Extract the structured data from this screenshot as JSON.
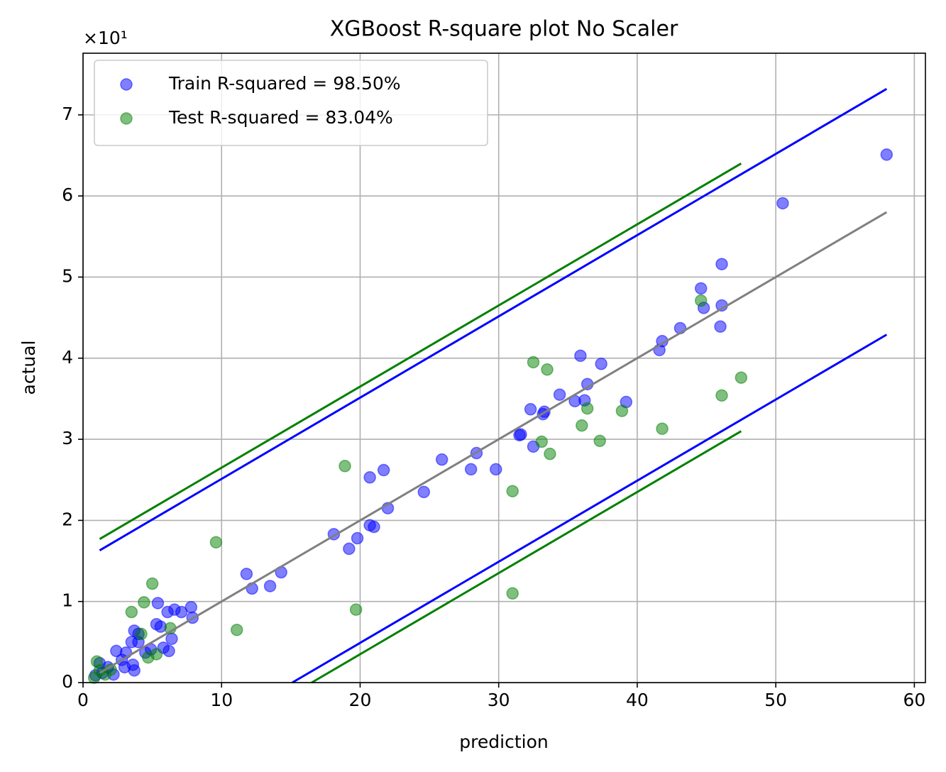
{
  "chart_data": {
    "type": "scatter",
    "title": "XGBoost R-square plot No Scaler",
    "xlabel": "prediction",
    "ylabel": "actual",
    "y_offset_text": "×10¹",
    "xlim": [
      0,
      60.8
    ],
    "ylim": [
      0,
      77.6
    ],
    "xticks": [
      0,
      10,
      20,
      30,
      40,
      50,
      60
    ],
    "yticks": [
      {
        "value": 0,
        "label": "0"
      },
      {
        "value": 10,
        "label": "1"
      },
      {
        "value": 20,
        "label": "2"
      },
      {
        "value": 30,
        "label": "3"
      },
      {
        "value": 40,
        "label": "4"
      },
      {
        "value": 50,
        "label": "5"
      },
      {
        "value": 60,
        "label": "6"
      },
      {
        "value": 70,
        "label": "7"
      }
    ],
    "grid": true,
    "legend": "upper left",
    "series": [
      {
        "name": "Train R-squared = 98.50%",
        "color": "#0000ff",
        "x": [
          58.0,
          50.5,
          46.1,
          44.6,
          44.8,
          46.1,
          46.0,
          43.1,
          41.8,
          41.6,
          35.9,
          37.4,
          36.4,
          39.2,
          34.4,
          35.5,
          36.2,
          32.3,
          33.3,
          33.2,
          31.6,
          31.5,
          32.5,
          28.4,
          25.9,
          28.0,
          29.8,
          24.6,
          21.7,
          20.7,
          22.0,
          20.7,
          21.0,
          18.1,
          19.8,
          19.2,
          11.8,
          14.3,
          13.5,
          12.2,
          7.8,
          7.9,
          7.1,
          6.6,
          6.1,
          5.4,
          6.4,
          6.2,
          5.8,
          5.3,
          5.6,
          3.7,
          4.0,
          3.5,
          4.0,
          3.1,
          2.4,
          2.8,
          3.7,
          3.6,
          1.8,
          1.2,
          1.4,
          0.9,
          2.2,
          3.0,
          4.5,
          4.9
        ],
        "values": [
          65.1,
          59.1,
          51.6,
          48.6,
          46.2,
          46.5,
          43.9,
          43.7,
          42.1,
          41.0,
          40.3,
          39.3,
          36.8,
          34.6,
          35.5,
          34.7,
          34.8,
          33.7,
          33.4,
          33.1,
          30.6,
          30.5,
          29.1,
          28.3,
          27.5,
          26.3,
          26.3,
          23.5,
          26.2,
          25.3,
          21.5,
          19.4,
          19.2,
          18.3,
          17.8,
          16.5,
          13.4,
          13.6,
          11.9,
          11.6,
          9.3,
          8.0,
          8.7,
          9.0,
          8.7,
          9.8,
          5.4,
          3.9,
          4.3,
          7.2,
          6.9,
          6.4,
          6.0,
          5.0,
          5.0,
          3.7,
          3.9,
          2.8,
          1.5,
          2.2,
          1.9,
          2.4,
          1.2,
          0.9,
          1.0,
          1.9,
          3.7,
          4.1
        ]
      },
      {
        "name": "Test R-squared = 83.04%",
        "color": "#008000",
        "x": [
          44.6,
          47.5,
          46.1,
          41.8,
          38.9,
          32.5,
          33.5,
          36.4,
          36.0,
          37.3,
          33.1,
          33.7,
          18.9,
          31.0,
          9.6,
          19.7,
          31.0,
          11.1,
          5.0,
          3.5,
          4.4,
          6.3,
          5.3,
          4.7,
          4.2,
          1.0,
          1.2,
          1.6,
          0.8,
          2.0
        ],
        "values": [
          47.1,
          37.6,
          35.4,
          31.3,
          33.5,
          39.5,
          38.6,
          33.8,
          31.7,
          29.8,
          29.7,
          28.2,
          26.7,
          23.6,
          17.3,
          9.0,
          11.0,
          6.5,
          12.2,
          8.7,
          9.9,
          6.7,
          3.5,
          3.1,
          6.0,
          2.6,
          1.5,
          1.0,
          0.6,
          1.6
        ]
      }
    ],
    "lines": [
      {
        "color": "#0000ff",
        "x": [
          1.2,
          58.0
        ],
        "values": [
          16.3,
          73.2
        ]
      },
      {
        "color": "#0000ff",
        "x": [
          15.1,
          58.0
        ],
        "values": [
          0,
          42.9
        ]
      },
      {
        "color": "#008000",
        "x": [
          1.2,
          47.5
        ],
        "values": [
          17.7,
          64.0
        ]
      },
      {
        "color": "#008000",
        "x": [
          16.5,
          47.5
        ],
        "values": [
          0,
          31.0
        ]
      },
      {
        "color": "#808080",
        "x": [
          1.2,
          58.0
        ],
        "values": [
          1.2,
          58.0
        ]
      }
    ]
  }
}
